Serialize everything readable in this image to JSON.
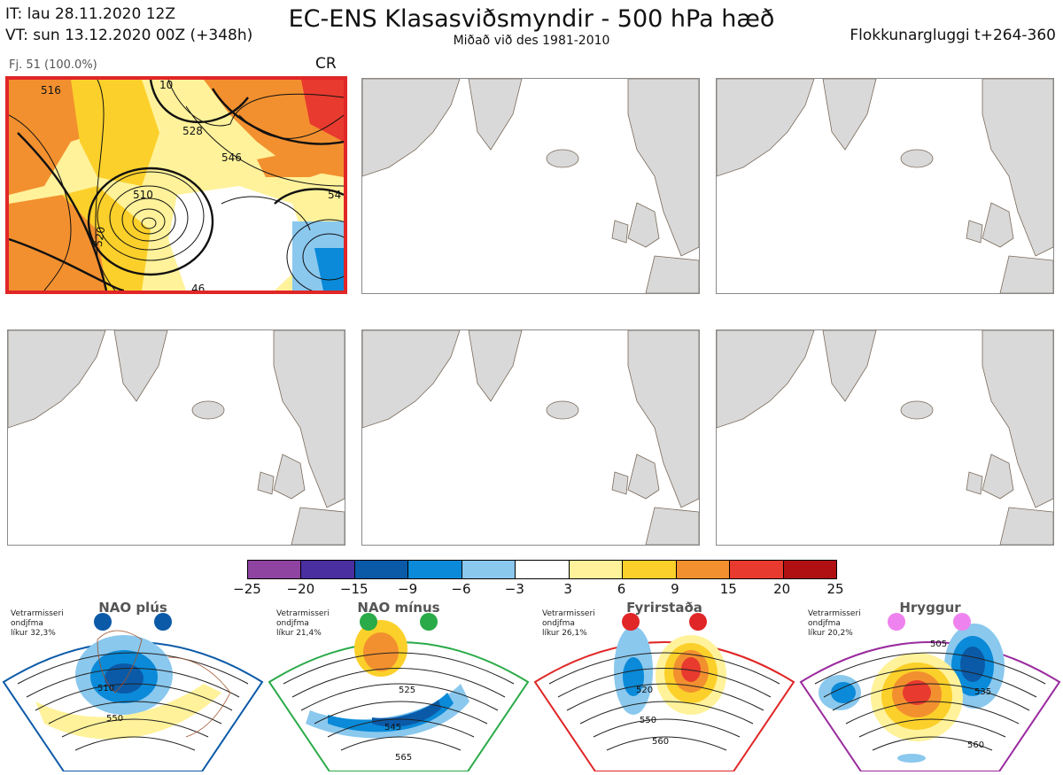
{
  "header": {
    "it_line": "IT: lau 28.11.2020 12Z",
    "vt_line": "VT: sun 13.12.2020 00Z  (+348h)",
    "title": "EC-ENS Klasasviðsmyndir - 500 hPa hæð",
    "subtitle": "Miðað við des 1981-2010",
    "window": "Flokkunargluggi t+264-360"
  },
  "cluster": {
    "label": "Fj. 51 (100.0%)",
    "code": "CR",
    "contour_labels": [
      "516",
      "528",
      "546",
      "510",
      "520",
      "54",
      "46",
      "10"
    ]
  },
  "colorbar": {
    "colors": [
      "#8e44a0",
      "#4a2fa0",
      "#0b5aa8",
      "#0a8ad8",
      "#8ac8ee",
      "#ffffff",
      "#fff29a",
      "#fcd02a",
      "#f2902f",
      "#e83a2e",
      "#b01012"
    ],
    "ticks": [
      "−25",
      "−20",
      "−15",
      "−9",
      "−6",
      "−3",
      "3",
      "6",
      "9",
      "15",
      "20",
      "25"
    ]
  },
  "regimes": [
    {
      "name": "NAO plús",
      "note": "Vetrarmisseri\nondjfma\nlíkur 32,3%",
      "color": "#0b5aa8",
      "labels": [
        "510",
        "550"
      ]
    },
    {
      "name": "NAO mínus",
      "note": "Vetrarmisseri\nondjfma\nlíkur 21,4%",
      "color": "#2aaa48",
      "labels": [
        "525",
        "545",
        "565"
      ]
    },
    {
      "name": "Fyrirstaða",
      "note": "Vetrarmisseri\nondjfma\nlíkur 26,1%",
      "color": "#e02626",
      "labels": [
        "520",
        "550",
        "560"
      ]
    },
    {
      "name": "Hryggur",
      "note": "Vetrarmisseri\nondjfma\nlíkur 20,2%",
      "color": "#9a2a9e",
      "labels": [
        "505",
        "535",
        "560"
      ]
    }
  ]
}
